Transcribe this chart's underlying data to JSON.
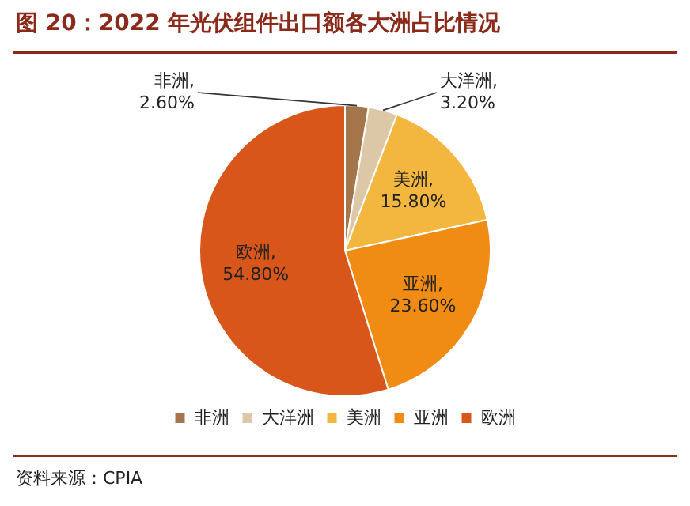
{
  "chart_data": {
    "type": "pie",
    "title": "图 20：2022 年光伏组件出口额各大洲占比情况",
    "categories": [
      "非洲",
      "大洋洲",
      "美洲",
      "亚洲",
      "欧洲"
    ],
    "values": [
      2.6,
      3.2,
      15.8,
      23.6,
      54.8
    ],
    "value_labels": [
      "非洲,\n2.60%",
      "大洋洲,\n3.20%",
      "美洲,\n15.80%",
      "亚洲,\n23.60%",
      "欧洲,\n54.80%"
    ],
    "colors": [
      "#a5754b",
      "#dcc7a6",
      "#f3b63f",
      "#f08c14",
      "#d9561b"
    ],
    "legend": "bottom",
    "annotations": [
      "资料来源：CPIA"
    ]
  }
}
